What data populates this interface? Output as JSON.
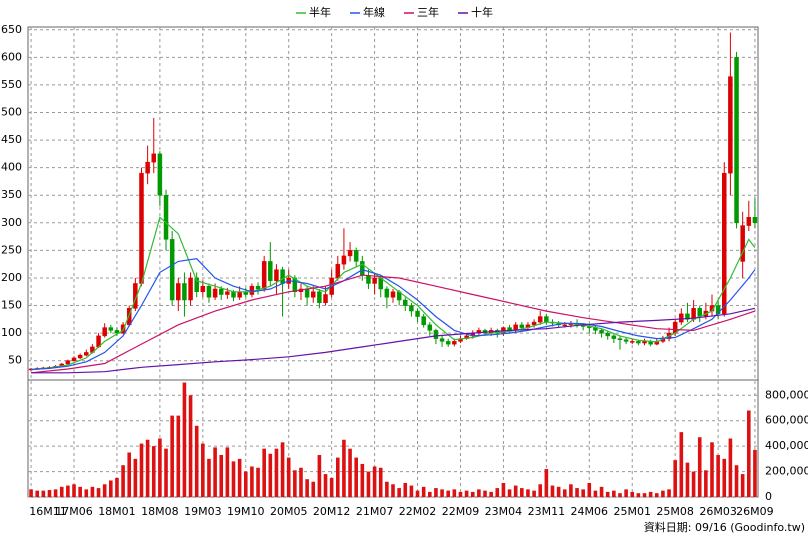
{
  "chart_data": [
    {
      "type": "candlestick",
      "up_color": "#dd0000",
      "down_color": "#009900",
      "grid": true,
      "legend": "top",
      "ylim": [
        15,
        655
      ],
      "yticks": [
        50,
        100,
        150,
        200,
        250,
        300,
        350,
        400,
        450,
        500,
        550,
        600,
        650
      ],
      "categories": [
        "16M11",
        null,
        null,
        null,
        null,
        null,
        null,
        "17M06",
        null,
        null,
        null,
        null,
        null,
        null,
        "18M01",
        null,
        null,
        null,
        null,
        null,
        null,
        "18M08",
        null,
        null,
        null,
        null,
        null,
        null,
        "19M03",
        null,
        null,
        null,
        null,
        null,
        null,
        "19M10",
        null,
        null,
        null,
        null,
        null,
        null,
        "20M05",
        null,
        null,
        null,
        null,
        null,
        null,
        "20M12",
        null,
        null,
        null,
        null,
        null,
        null,
        "21M07",
        null,
        null,
        null,
        null,
        null,
        null,
        "22M02",
        null,
        null,
        null,
        null,
        null,
        null,
        "22M09",
        null,
        null,
        null,
        null,
        null,
        null,
        "23M04",
        null,
        null,
        null,
        null,
        null,
        null,
        "23M11",
        null,
        null,
        null,
        null,
        null,
        null,
        "24M06",
        null,
        null,
        null,
        null,
        null,
        null,
        "25M01",
        null,
        null,
        null,
        null,
        null,
        null,
        "25M08",
        null,
        null,
        null,
        null,
        null,
        null,
        "26M03",
        null,
        null,
        null,
        null,
        null,
        "26M09"
      ],
      "open": [
        34,
        35,
        36,
        37,
        38,
        40,
        44,
        50,
        55,
        60,
        65,
        75,
        95,
        110,
        105,
        100,
        115,
        145,
        190,
        390,
        410,
        425,
        350,
        270,
        160,
        190,
        160,
        200,
        175,
        185,
        165,
        180,
        170,
        175,
        165,
        175,
        170,
        185,
        180,
        230,
        195,
        215,
        190,
        200,
        175,
        180,
        165,
        175,
        155,
        170,
        200,
        225,
        240,
        250,
        230,
        205,
        190,
        200,
        180,
        165,
        175,
        160,
        150,
        140,
        130,
        115,
        105,
        90,
        85,
        80,
        85,
        90,
        95,
        100,
        105,
        100,
        105,
        100,
        110,
        105,
        115,
        110,
        115,
        120,
        130,
        120,
        118,
        115,
        115,
        118,
        115,
        112,
        110,
        105,
        100,
        95,
        90,
        88,
        85,
        85,
        82,
        85,
        80,
        85,
        90,
        100,
        120,
        135,
        125,
        145,
        130,
        140,
        150,
        135,
        390,
        600,
        230,
        295,
        310
      ],
      "high": [
        37,
        38,
        39,
        40,
        42,
        46,
        52,
        58,
        63,
        70,
        80,
        100,
        118,
        115,
        110,
        120,
        150,
        200,
        400,
        440,
        490,
        430,
        360,
        285,
        200,
        210,
        210,
        210,
        195,
        190,
        190,
        185,
        182,
        178,
        185,
        182,
        190,
        192,
        240,
        265,
        225,
        220,
        215,
        205,
        190,
        185,
        185,
        180,
        185,
        215,
        240,
        290,
        265,
        255,
        240,
        215,
        210,
        205,
        185,
        180,
        178,
        165,
        155,
        145,
        135,
        120,
        108,
        95,
        90,
        90,
        95,
        100,
        105,
        110,
        108,
        110,
        108,
        112,
        115,
        120,
        120,
        120,
        125,
        140,
        135,
        125,
        122,
        120,
        122,
        125,
        118,
        115,
        113,
        108,
        104,
        98,
        95,
        92,
        90,
        88,
        90,
        88,
        90,
        95,
        110,
        125,
        145,
        155,
        160,
        150,
        155,
        170,
        160,
        410,
        645,
        610,
        320,
        340,
        345
      ],
      "low": [
        32,
        34,
        35,
        36,
        37,
        39,
        43,
        48,
        53,
        58,
        63,
        73,
        92,
        100,
        95,
        98,
        112,
        140,
        185,
        370,
        390,
        330,
        250,
        150,
        140,
        130,
        150,
        165,
        165,
        155,
        160,
        160,
        162,
        158,
        160,
        165,
        165,
        170,
        175,
        185,
        170,
        130,
        180,
        165,
        160,
        150,
        155,
        145,
        150,
        165,
        195,
        215,
        230,
        220,
        195,
        180,
        170,
        165,
        145,
        155,
        150,
        140,
        130,
        120,
        110,
        95,
        80,
        75,
        75,
        76,
        82,
        88,
        90,
        95,
        95,
        95,
        92,
        95,
        100,
        100,
        105,
        105,
        110,
        115,
        115,
        112,
        110,
        110,
        110,
        110,
        105,
        100,
        98,
        92,
        88,
        82,
        70,
        80,
        80,
        78,
        78,
        76,
        78,
        82,
        85,
        95,
        115,
        120,
        120,
        120,
        125,
        130,
        125,
        130,
        350,
        290,
        200,
        285,
        290
      ],
      "close": [
        35,
        36,
        37,
        38,
        40,
        44,
        50,
        55,
        60,
        65,
        75,
        95,
        110,
        105,
        100,
        115,
        145,
        190,
        390,
        410,
        425,
        350,
        270,
        160,
        190,
        160,
        200,
        175,
        185,
        165,
        180,
        170,
        175,
        165,
        175,
        170,
        185,
        180,
        230,
        195,
        215,
        190,
        200,
        175,
        180,
        165,
        175,
        155,
        170,
        200,
        225,
        240,
        250,
        230,
        205,
        190,
        200,
        180,
        165,
        175,
        160,
        150,
        140,
        130,
        115,
        105,
        90,
        85,
        80,
        85,
        90,
        95,
        100,
        105,
        100,
        105,
        100,
        110,
        105,
        115,
        110,
        115,
        120,
        130,
        120,
        118,
        115,
        115,
        118,
        115,
        112,
        110,
        105,
        100,
        95,
        90,
        88,
        85,
        85,
        82,
        85,
        80,
        85,
        90,
        100,
        120,
        135,
        125,
        145,
        130,
        140,
        150,
        135,
        390,
        565,
        300,
        295,
        310,
        300
      ],
      "series": [
        {
          "name": "半年",
          "color": "#33bb33",
          "x": [
            0,
            3,
            6,
            9,
            12,
            15,
            18,
            21,
            24,
            27,
            30,
            33,
            36,
            39,
            42,
            45,
            48,
            51,
            54,
            57,
            60,
            63,
            66,
            69,
            72,
            75,
            78,
            81,
            84,
            87,
            90,
            93,
            96,
            99,
            102,
            105,
            108,
            111,
            114,
            117,
            118
          ],
          "values": [
            34,
            37,
            42,
            55,
            85,
            105,
            190,
            310,
            280,
            195,
            185,
            175,
            175,
            185,
            205,
            185,
            175,
            210,
            225,
            200,
            175,
            150,
            115,
            88,
            92,
            100,
            103,
            110,
            120,
            118,
            115,
            108,
            95,
            87,
            84,
            100,
            125,
            140,
            200,
            270,
            255
          ]
        },
        {
          "name": "年線",
          "color": "#2255ee",
          "x": [
            0,
            3,
            6,
            9,
            12,
            15,
            18,
            21,
            24,
            27,
            30,
            33,
            36,
            39,
            42,
            45,
            48,
            51,
            54,
            57,
            60,
            63,
            66,
            69,
            72,
            75,
            78,
            81,
            84,
            87,
            90,
            93,
            96,
            99,
            102,
            105,
            108,
            111,
            114,
            117,
            118
          ],
          "values": [
            34,
            36,
            40,
            48,
            65,
            95,
            150,
            210,
            230,
            235,
            200,
            185,
            175,
            180,
            195,
            190,
            180,
            195,
            215,
            205,
            185,
            160,
            130,
            105,
            95,
            97,
            100,
            105,
            112,
            118,
            117,
            112,
            103,
            95,
            90,
            92,
            108,
            125,
            160,
            200,
            215
          ]
        },
        {
          "name": "三年",
          "color": "#cc1166",
          "x": [
            0,
            6,
            12,
            18,
            24,
            30,
            36,
            42,
            48,
            54,
            60,
            66,
            72,
            78,
            84,
            90,
            96,
            102,
            108,
            114,
            118
          ],
          "values": [
            28,
            35,
            45,
            80,
            115,
            140,
            160,
            175,
            185,
            205,
            200,
            185,
            170,
            155,
            140,
            128,
            118,
            108,
            105,
            125,
            140
          ]
        },
        {
          "name": "十年",
          "color": "#6611aa",
          "x": [
            0,
            6,
            12,
            18,
            24,
            30,
            36,
            42,
            48,
            54,
            60,
            66,
            72,
            78,
            84,
            90,
            96,
            102,
            108,
            114,
            118
          ],
          "values": [
            28,
            28,
            30,
            38,
            43,
            48,
            52,
            57,
            65,
            75,
            85,
            95,
            100,
            105,
            108,
            115,
            120,
            123,
            127,
            135,
            145
          ]
        }
      ]
    },
    {
      "type": "bar",
      "color": "#dd1111",
      "grid": true,
      "ylim": [
        0,
        920000
      ],
      "yticks": [
        0,
        {
          "value": 200000,
          "label": "200,000"
        },
        {
          "value": 400000,
          "label": "400,000"
        },
        {
          "value": 600000,
          "label": "600,000"
        },
        {
          "value": 800000,
          "label": "800,000"
        }
      ],
      "values": [
        60000,
        50000,
        50000,
        55000,
        60000,
        80000,
        90000,
        100000,
        80000,
        60000,
        80000,
        70000,
        100000,
        130000,
        150000,
        250000,
        350000,
        300000,
        420000,
        450000,
        400000,
        460000,
        380000,
        640000,
        640000,
        900000,
        800000,
        560000,
        420000,
        300000,
        390000,
        330000,
        390000,
        280000,
        300000,
        200000,
        240000,
        230000,
        380000,
        340000,
        380000,
        430000,
        310000,
        210000,
        230000,
        140000,
        120000,
        330000,
        180000,
        150000,
        310000,
        450000,
        380000,
        310000,
        260000,
        200000,
        240000,
        230000,
        120000,
        100000,
        70000,
        110000,
        90000,
        50000,
        80000,
        40000,
        70000,
        60000,
        50000,
        60000,
        40000,
        50000,
        40000,
        60000,
        50000,
        40000,
        70000,
        110000,
        60000,
        90000,
        70000,
        60000,
        50000,
        100000,
        220000,
        90000,
        80000,
        60000,
        100000,
        70000,
        60000,
        110000,
        50000,
        80000,
        40000,
        50000,
        30000,
        60000,
        40000,
        30000,
        30000,
        40000,
        30000,
        50000,
        60000,
        290000,
        510000,
        270000,
        200000,
        470000,
        210000,
        430000,
        330000,
        300000,
        460000,
        250000,
        180000,
        680000,
        370000
      ]
    }
  ],
  "source": "資料日期: 09/16 (Goodinfo.tw)"
}
